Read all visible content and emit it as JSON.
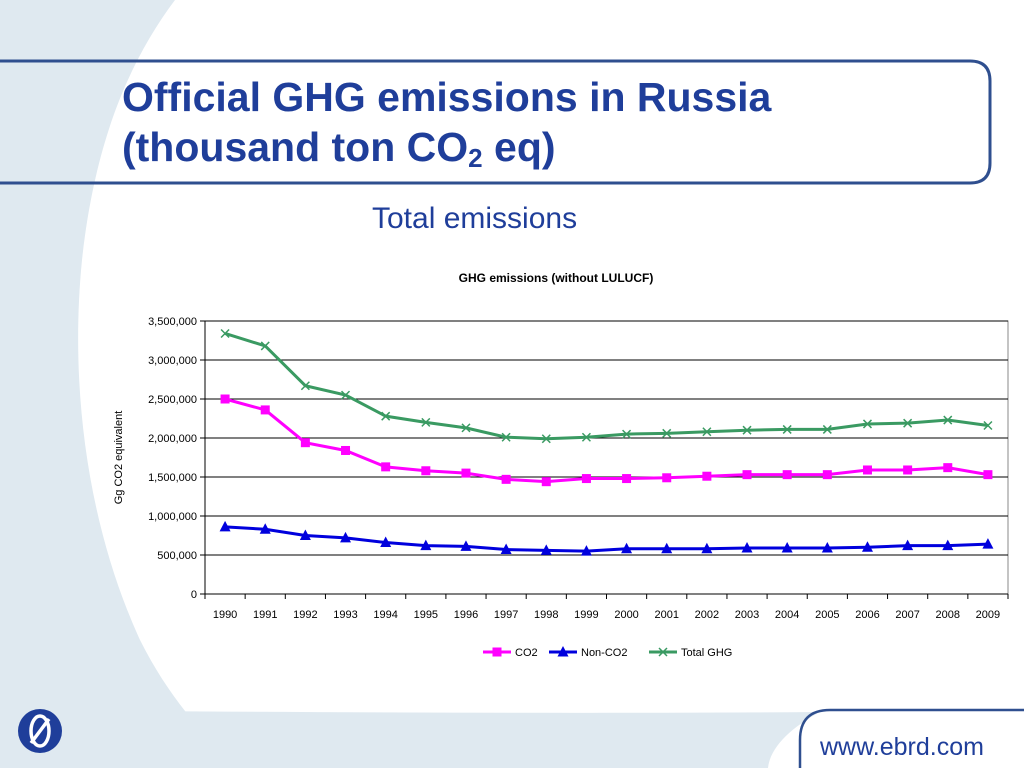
{
  "slide": {
    "title_line1": "Official GHG emissions in Russia",
    "title_line2_pre": "(thousand ton CO",
    "title_subscript": "2",
    "title_line2_post": " eq)",
    "subtitle": "Total emissions",
    "footer_url": "www.ebrd.com"
  },
  "colors": {
    "title_blue": "#1f3e9a",
    "frame_blue": "#2f4f8f",
    "background_swoosh": "#dfe9f0"
  },
  "chart_data": {
    "type": "line",
    "title": "GHG emissions (without LULUCF)",
    "xlabel": "",
    "ylabel": "Gg CO2 equivalent",
    "ylim": [
      0,
      3500000
    ],
    "yticks": [
      0,
      500000,
      1000000,
      1500000,
      2000000,
      2500000,
      3000000,
      3500000
    ],
    "ytick_labels": [
      "0",
      "500,000",
      "1,000,000",
      "1,500,000",
      "2,000,000",
      "2,500,000",
      "3,000,000",
      "3,500,000"
    ],
    "grid": true,
    "legend_position": "bottom",
    "categories": [
      "1990",
      "1991",
      "1992",
      "1993",
      "1994",
      "1995",
      "1996",
      "1997",
      "1998",
      "1999",
      "2000",
      "2001",
      "2002",
      "2003",
      "2004",
      "2005",
      "2006",
      "2007",
      "2008",
      "2009"
    ],
    "series": [
      {
        "name": "CO2",
        "color": "#ff00ff",
        "marker": "square",
        "values": [
          2500000,
          2360000,
          1940000,
          1840000,
          1630000,
          1580000,
          1550000,
          1470000,
          1440000,
          1480000,
          1480000,
          1490000,
          1510000,
          1530000,
          1530000,
          1530000,
          1590000,
          1590000,
          1620000,
          1530000
        ]
      },
      {
        "name": "Non-CO2",
        "color": "#0000dd",
        "marker": "triangle",
        "values": [
          860000,
          830000,
          750000,
          720000,
          660000,
          620000,
          610000,
          570000,
          560000,
          550000,
          580000,
          580000,
          580000,
          590000,
          590000,
          590000,
          600000,
          620000,
          620000,
          640000
        ]
      },
      {
        "name": "Total GHG",
        "color": "#3a9a62",
        "marker": "x",
        "values": [
          3340000,
          3180000,
          2670000,
          2550000,
          2280000,
          2200000,
          2130000,
          2010000,
          1990000,
          2010000,
          2050000,
          2060000,
          2080000,
          2100000,
          2110000,
          2110000,
          2180000,
          2190000,
          2230000,
          2160000
        ]
      }
    ]
  }
}
